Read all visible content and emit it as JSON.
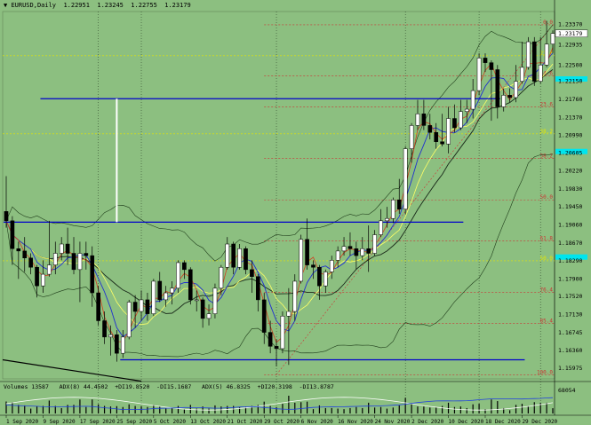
{
  "header": {
    "arrow": "▼",
    "symbol": "EURUSD,Daily",
    "ohlc": "1.22951  1.23245  1.22755  1.23179"
  },
  "volume_header": {
    "text": "Volumes 13587   ADX(8) 44.4502  +DI19.8520  -DI15.1687   ADX(5) 46.8325  +DI20.3198  -DI13.8787",
    "scale_top": "68054"
  },
  "price_labels": [
    "1.23370",
    "1.22935",
    "1.22500",
    "1.22150",
    "1.21760",
    "1.21370",
    "1.20990",
    "1.20605",
    "1.20220",
    "1.19830",
    "1.19450",
    "1.19060",
    "1.18670",
    "1.18290",
    "1.17900",
    "1.17520",
    "1.17130",
    "1.16745",
    "1.16360",
    "1.15975"
  ],
  "current_price": "1.23179",
  "date_labels": [
    "1 Sep 2020",
    "9 Sep 2020",
    "17 Sep 2020",
    "25 Sep 2020",
    "5 Oct 2020",
    "13 Oct 2020",
    "21 Oct 2020",
    "29 Oct 2020",
    "6 Nov 2020",
    "16 Nov 2020",
    "24 Nov 2020",
    "2 Dec 2020",
    "10 Dec 2020",
    "18 Dec 2020",
    "29 Dec 2020"
  ],
  "fib_labels": {
    "l0": "0.0",
    "l14_6": "14.6",
    "l23_6": "23.6",
    "l38_2": "38.2",
    "l50_0": "50.0",
    "l61_8": "61.8",
    "l76_4": "76.4",
    "l85_4": "85.4",
    "l100_0": "100.0",
    "y_23_6": "23.6",
    "y_38_2": "38.2",
    "y_50_0": "50.0"
  },
  "colors": {
    "background": "#8cbf80",
    "bull_candle": "#ffffff",
    "bear_candle": "#000000",
    "support_line": "#0000cc",
    "fib_red": "#cc3333",
    "fib_yellow": "#e6e600",
    "cyan_marker": "#00e5ee"
  },
  "chart_data": {
    "type": "candlestick",
    "symbol": "EURUSD",
    "timeframe": "Daily",
    "ylim": [
      1.1575,
      1.2365
    ],
    "candles": [
      {
        "date": "2020-09-01",
        "o": 1.1935,
        "h": 1.2011,
        "l": 1.19,
        "c": 1.1915
      },
      {
        "date": "2020-09-02",
        "o": 1.1915,
        "h": 1.1925,
        "l": 1.182,
        "c": 1.1855
      },
      {
        "date": "2020-09-03",
        "o": 1.1855,
        "h": 1.187,
        "l": 1.179,
        "c": 1.185
      },
      {
        "date": "2020-09-04",
        "o": 1.185,
        "h": 1.188,
        "l": 1.1805,
        "c": 1.1835
      },
      {
        "date": "2020-09-07",
        "o": 1.1835,
        "h": 1.1845,
        "l": 1.18,
        "c": 1.1815
      },
      {
        "date": "2020-09-08",
        "o": 1.1815,
        "h": 1.182,
        "l": 1.175,
        "c": 1.1775
      },
      {
        "date": "2020-09-09",
        "o": 1.1775,
        "h": 1.183,
        "l": 1.176,
        "c": 1.18
      },
      {
        "date": "2020-09-10",
        "o": 1.18,
        "h": 1.1915,
        "l": 1.1795,
        "c": 1.182
      },
      {
        "date": "2020-09-11",
        "o": 1.182,
        "h": 1.187,
        "l": 1.18,
        "c": 1.1845
      },
      {
        "date": "2020-09-14",
        "o": 1.1845,
        "h": 1.188,
        "l": 1.183,
        "c": 1.1865
      },
      {
        "date": "2020-09-15",
        "o": 1.1865,
        "h": 1.19,
        "l": 1.182,
        "c": 1.1845
      },
      {
        "date": "2020-09-16",
        "o": 1.1845,
        "h": 1.188,
        "l": 1.18,
        "c": 1.181
      },
      {
        "date": "2020-09-17",
        "o": 1.181,
        "h": 1.187,
        "l": 1.174,
        "c": 1.1845
      },
      {
        "date": "2020-09-18",
        "o": 1.1845,
        "h": 1.187,
        "l": 1.181,
        "c": 1.184
      },
      {
        "date": "2020-09-21",
        "o": 1.184,
        "h": 1.186,
        "l": 1.173,
        "c": 1.176
      },
      {
        "date": "2020-09-22",
        "o": 1.176,
        "h": 1.1775,
        "l": 1.169,
        "c": 1.17
      },
      {
        "date": "2020-09-23",
        "o": 1.17,
        "h": 1.172,
        "l": 1.165,
        "c": 1.1665
      },
      {
        "date": "2020-09-24",
        "o": 1.1665,
        "h": 1.169,
        "l": 1.1625,
        "c": 1.167
      },
      {
        "date": "2020-09-25",
        "o": 1.167,
        "h": 1.168,
        "l": 1.1612,
        "c": 1.163
      },
      {
        "date": "2020-09-28",
        "o": 1.163,
        "h": 1.168,
        "l": 1.162,
        "c": 1.1665
      },
      {
        "date": "2020-09-29",
        "o": 1.1665,
        "h": 1.1745,
        "l": 1.166,
        "c": 1.174
      },
      {
        "date": "2020-09-30",
        "o": 1.174,
        "h": 1.1755,
        "l": 1.1685,
        "c": 1.172
      },
      {
        "date": "2020-10-01",
        "o": 1.172,
        "h": 1.1765,
        "l": 1.17,
        "c": 1.1745
      },
      {
        "date": "2020-10-02",
        "o": 1.1745,
        "h": 1.176,
        "l": 1.17,
        "c": 1.1715
      },
      {
        "date": "2020-10-05",
        "o": 1.1715,
        "h": 1.179,
        "l": 1.171,
        "c": 1.1785
      },
      {
        "date": "2020-10-06",
        "o": 1.1785,
        "h": 1.1805,
        "l": 1.174,
        "c": 1.1745
      },
      {
        "date": "2020-10-07",
        "o": 1.1745,
        "h": 1.1775,
        "l": 1.173,
        "c": 1.176
      },
      {
        "date": "2020-10-08",
        "o": 1.176,
        "h": 1.1785,
        "l": 1.1735,
        "c": 1.177
      },
      {
        "date": "2020-10-09",
        "o": 1.177,
        "h": 1.183,
        "l": 1.176,
        "c": 1.1825
      },
      {
        "date": "2020-10-12",
        "o": 1.1825,
        "h": 1.183,
        "l": 1.179,
        "c": 1.181
      },
      {
        "date": "2020-10-13",
        "o": 1.181,
        "h": 1.1815,
        "l": 1.1735,
        "c": 1.1745
      },
      {
        "date": "2020-10-14",
        "o": 1.1745,
        "h": 1.1765,
        "l": 1.172,
        "c": 1.1745
      },
      {
        "date": "2020-10-15",
        "o": 1.1745,
        "h": 1.175,
        "l": 1.1685,
        "c": 1.1705
      },
      {
        "date": "2020-10-16",
        "o": 1.1705,
        "h": 1.1735,
        "l": 1.169,
        "c": 1.1715
      },
      {
        "date": "2020-10-19",
        "o": 1.1715,
        "h": 1.178,
        "l": 1.1705,
        "c": 1.177
      },
      {
        "date": "2020-10-20",
        "o": 1.177,
        "h": 1.182,
        "l": 1.1755,
        "c": 1.1815
      },
      {
        "date": "2020-10-21",
        "o": 1.1815,
        "h": 1.188,
        "l": 1.181,
        "c": 1.1865
      },
      {
        "date": "2020-10-22",
        "o": 1.1865,
        "h": 1.187,
        "l": 1.18,
        "c": 1.1815
      },
      {
        "date": "2020-10-23",
        "o": 1.1815,
        "h": 1.1865,
        "l": 1.181,
        "c": 1.1855
      },
      {
        "date": "2020-10-26",
        "o": 1.1855,
        "h": 1.186,
        "l": 1.18,
        "c": 1.181
      },
      {
        "date": "2020-10-27",
        "o": 1.181,
        "h": 1.183,
        "l": 1.176,
        "c": 1.1795
      },
      {
        "date": "2020-10-28",
        "o": 1.1795,
        "h": 1.18,
        "l": 1.172,
        "c": 1.1745
      },
      {
        "date": "2020-10-29",
        "o": 1.1745,
        "h": 1.176,
        "l": 1.165,
        "c": 1.1675
      },
      {
        "date": "2020-10-30",
        "o": 1.1675,
        "h": 1.17,
        "l": 1.163,
        "c": 1.1645
      },
      {
        "date": "2020-11-02",
        "o": 1.1645,
        "h": 1.166,
        "l": 1.1602,
        "c": 1.164
      },
      {
        "date": "2020-11-03",
        "o": 1.164,
        "h": 1.172,
        "l": 1.163,
        "c": 1.171
      },
      {
        "date": "2020-11-04",
        "o": 1.171,
        "h": 1.177,
        "l": 1.1605,
        "c": 1.172
      },
      {
        "date": "2020-11-05",
        "o": 1.172,
        "h": 1.18,
        "l": 1.17,
        "c": 1.1785
      },
      {
        "date": "2020-11-06",
        "o": 1.1785,
        "h": 1.1885,
        "l": 1.178,
        "c": 1.1875
      },
      {
        "date": "2020-11-09",
        "o": 1.1875,
        "h": 1.192,
        "l": 1.181,
        "c": 1.182
      },
      {
        "date": "2020-11-10",
        "o": 1.182,
        "h": 1.183,
        "l": 1.179,
        "c": 1.1815
      },
      {
        "date": "2020-11-11",
        "o": 1.1815,
        "h": 1.182,
        "l": 1.1745,
        "c": 1.1775
      },
      {
        "date": "2020-11-12",
        "o": 1.1775,
        "h": 1.181,
        "l": 1.176,
        "c": 1.1805
      },
      {
        "date": "2020-11-13",
        "o": 1.1805,
        "h": 1.184,
        "l": 1.179,
        "c": 1.183
      },
      {
        "date": "2020-11-16",
        "o": 1.183,
        "h": 1.186,
        "l": 1.1815,
        "c": 1.185
      },
      {
        "date": "2020-11-17",
        "o": 1.185,
        "h": 1.188,
        "l": 1.184,
        "c": 1.186
      },
      {
        "date": "2020-11-18",
        "o": 1.186,
        "h": 1.189,
        "l": 1.184,
        "c": 1.1855
      },
      {
        "date": "2020-11-19",
        "o": 1.1855,
        "h": 1.187,
        "l": 1.181,
        "c": 1.184
      },
      {
        "date": "2020-11-20",
        "o": 1.184,
        "h": 1.188,
        "l": 1.183,
        "c": 1.1855
      },
      {
        "date": "2020-11-23",
        "o": 1.1855,
        "h": 1.1905,
        "l": 1.1805,
        "c": 1.1845
      },
      {
        "date": "2020-11-24",
        "o": 1.1845,
        "h": 1.1895,
        "l": 1.184,
        "c": 1.1885
      },
      {
        "date": "2020-11-25",
        "o": 1.1885,
        "h": 1.194,
        "l": 1.188,
        "c": 1.1915
      },
      {
        "date": "2020-11-26",
        "o": 1.1915,
        "h": 1.1945,
        "l": 1.19,
        "c": 1.192
      },
      {
        "date": "2020-11-27",
        "o": 1.192,
        "h": 1.1965,
        "l": 1.191,
        "c": 1.196
      },
      {
        "date": "2020-11-30",
        "o": 1.196,
        "h": 1.2005,
        "l": 1.193,
        "c": 1.194
      },
      {
        "date": "2020-12-01",
        "o": 1.194,
        "h": 1.2075,
        "l": 1.193,
        "c": 1.207
      },
      {
        "date": "2020-12-02",
        "o": 1.207,
        "h": 1.2125,
        "l": 1.204,
        "c": 1.212
      },
      {
        "date": "2020-12-03",
        "o": 1.212,
        "h": 1.2175,
        "l": 1.211,
        "c": 1.2145
      },
      {
        "date": "2020-12-04",
        "o": 1.2145,
        "h": 1.2175,
        "l": 1.211,
        "c": 1.212
      },
      {
        "date": "2020-12-07",
        "o": 1.212,
        "h": 1.2145,
        "l": 1.209,
        "c": 1.2105
      },
      {
        "date": "2020-12-08",
        "o": 1.2105,
        "h": 1.2125,
        "l": 1.207,
        "c": 1.2085
      },
      {
        "date": "2020-12-09",
        "o": 1.2085,
        "h": 1.2145,
        "l": 1.2075,
        "c": 1.208
      },
      {
        "date": "2020-12-10",
        "o": 1.208,
        "h": 1.216,
        "l": 1.206,
        "c": 1.2135
      },
      {
        "date": "2020-12-11",
        "o": 1.2135,
        "h": 1.2165,
        "l": 1.2105,
        "c": 1.2115
      },
      {
        "date": "2020-12-14",
        "o": 1.2115,
        "h": 1.2175,
        "l": 1.211,
        "c": 1.215
      },
      {
        "date": "2020-12-15",
        "o": 1.215,
        "h": 1.2175,
        "l": 1.2125,
        "c": 1.2155
      },
      {
        "date": "2020-12-16",
        "o": 1.2155,
        "h": 1.222,
        "l": 1.2135,
        "c": 1.2195
      },
      {
        "date": "2020-12-17",
        "o": 1.2195,
        "h": 1.2275,
        "l": 1.2185,
        "c": 1.2265
      },
      {
        "date": "2020-12-18",
        "o": 1.2265,
        "h": 1.2275,
        "l": 1.2235,
        "c": 1.2255
      },
      {
        "date": "2020-12-21",
        "o": 1.2255,
        "h": 1.226,
        "l": 1.213,
        "c": 1.224
      },
      {
        "date": "2020-12-22",
        "o": 1.224,
        "h": 1.225,
        "l": 1.2135,
        "c": 1.216
      },
      {
        "date": "2020-12-23",
        "o": 1.216,
        "h": 1.22,
        "l": 1.215,
        "c": 1.2185
      },
      {
        "date": "2020-12-24",
        "o": 1.2185,
        "h": 1.22,
        "l": 1.217,
        "c": 1.218
      },
      {
        "date": "2020-12-28",
        "o": 1.218,
        "h": 1.225,
        "l": 1.217,
        "c": 1.2215
      },
      {
        "date": "2020-12-29",
        "o": 1.2215,
        "h": 1.23,
        "l": 1.221,
        "c": 1.2245
      },
      {
        "date": "2020-12-30",
        "o": 1.2245,
        "h": 1.231,
        "l": 1.224,
        "c": 1.23
      },
      {
        "date": "2020-12-31",
        "o": 1.23,
        "h": 1.231,
        "l": 1.2205,
        "c": 1.2215
      },
      {
        "date": "2021-01-04",
        "o": 1.2215,
        "h": 1.231,
        "l": 1.221,
        "c": 1.225
      },
      {
        "date": "2021-01-05",
        "o": 1.225,
        "h": 1.2345,
        "l": 1.2245,
        "c": 1.2295
      },
      {
        "date": "2021-01-06",
        "o": 1.22951,
        "h": 1.23245,
        "l": 1.22755,
        "c": 1.23179
      }
    ],
    "support_lines": [
      {
        "price": 1.21775,
        "from": "2020-09-09",
        "to": "2020-12-22"
      },
      {
        "price": 1.1912,
        "from": "2020-09-01",
        "to": "2020-12-14"
      },
      {
        "price": 1.1616,
        "from": "2020-09-28",
        "to": "2020-12-29"
      }
    ],
    "vertical_marker": {
      "date": "2020-09-25",
      "from": 1.1912,
      "to": 1.21775
    },
    "fibonacci_red": [
      {
        "label": "0.0",
        "price": 1.23365
      },
      {
        "label": "14.6",
        "price": 1.2227
      },
      {
        "label": "23.6",
        "price": 1.216
      },
      {
        "label": "38.2",
        "price": 1.2049
      },
      {
        "label": "50.0",
        "price": 1.196
      },
      {
        "label": "61.8",
        "price": 1.1872
      },
      {
        "label": "76.4",
        "price": 1.1761
      },
      {
        "label": "85.4",
        "price": 1.1694
      },
      {
        "label": "100.0",
        "price": 1.1584
      }
    ],
    "fibonacci_yellow": [
      {
        "label": "23.6",
        "price": 1.227
      },
      {
        "label": "38.2",
        "price": 1.2102
      },
      {
        "label": "50.0",
        "price": 1.1829
      }
    ],
    "adx_note": "ADX(8) 44.4502 +DI19.8520 -DI15.1687 ADX(5) 46.8325 +DI20.3198 -DI13.8787"
  }
}
